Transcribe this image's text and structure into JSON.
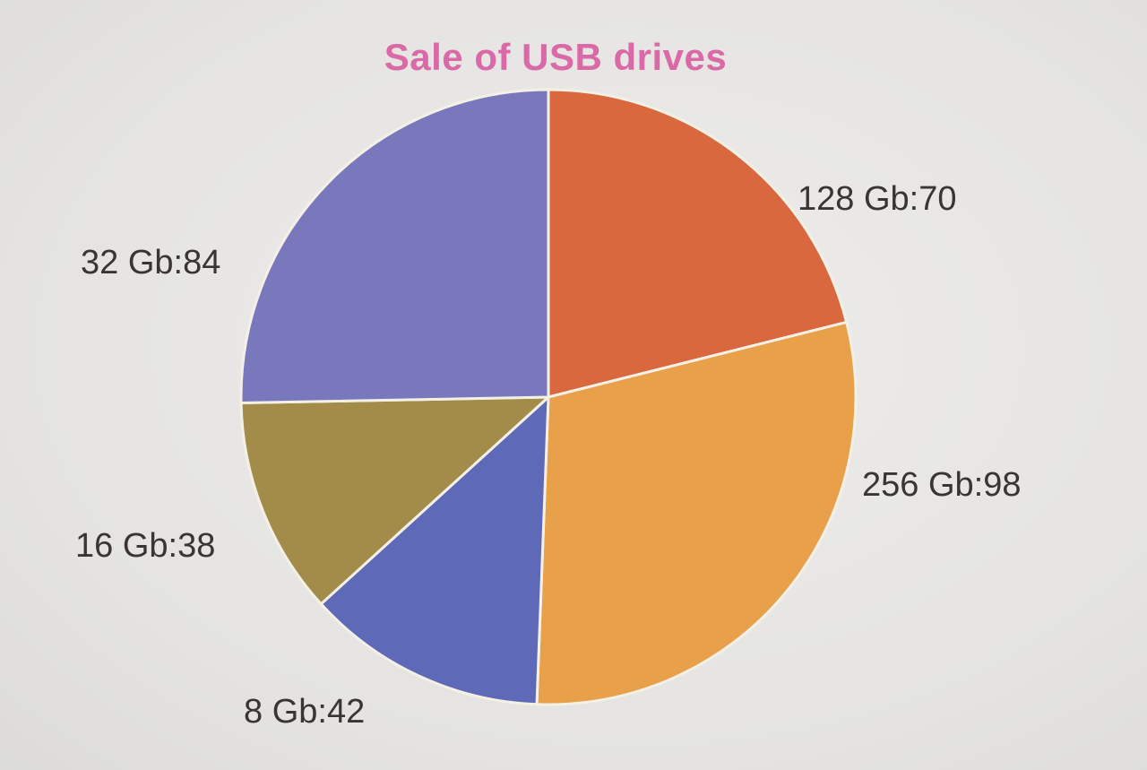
{
  "chart_data": {
    "type": "pie",
    "title": "Sale of USB drives",
    "categories": [
      "128 Gb",
      "256 Gb",
      "8 Gb",
      "16 Gb",
      "32 Gb"
    ],
    "values": [
      70,
      98,
      42,
      38,
      84
    ],
    "labels": [
      "128 Gb:70",
      "256 Gb:98",
      "8 Gb:42",
      "16 Gb:38",
      "32 Gb:84"
    ],
    "colors": [
      "#d9683f",
      "#e8a04a",
      "#5e69b8",
      "#a38c4a",
      "#7a78bd"
    ],
    "legend": "none"
  }
}
